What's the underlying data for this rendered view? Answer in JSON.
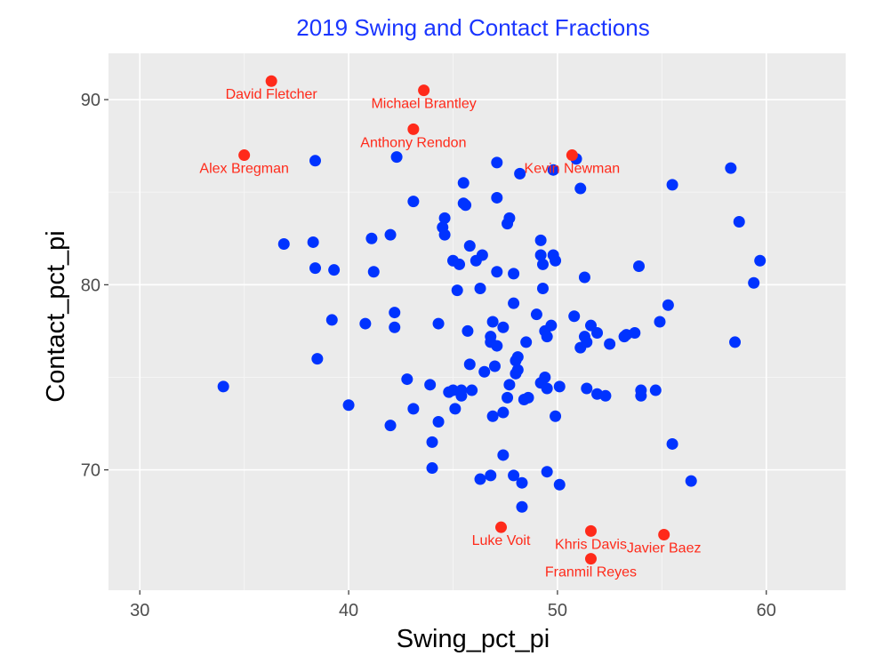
{
  "chart_data": {
    "type": "scatter",
    "title": "2019 Swing and Contact Fractions",
    "xlabel": "Swing_pct_pi",
    "ylabel": "Contact_pct_pi",
    "xlim": [
      28.5,
      63.8
    ],
    "ylim": [
      63.5,
      92.5
    ],
    "x_ticks": [
      30,
      40,
      50,
      60
    ],
    "y_ticks": [
      70,
      80,
      90
    ],
    "x_tick_labels": [
      "30",
      "40",
      "50",
      "60"
    ],
    "y_tick_labels": [
      "70",
      "80",
      "90"
    ],
    "grid": true,
    "legend": "none",
    "colors": {
      "panel": "#ebebeb",
      "grid_major": "#ffffff",
      "grid_minor": "#f5f5f5",
      "points": "#0033ff",
      "highlight": "#ff2a1a",
      "title": "#1a35ff",
      "tick": "#4d4d4d"
    },
    "series": [
      {
        "points": [
          [
            34.0,
            74.5
          ],
          [
            36.9,
            82.2
          ],
          [
            38.3,
            82.3
          ],
          [
            38.4,
            80.9
          ],
          [
            38.4,
            86.7
          ],
          [
            38.5,
            76.0
          ],
          [
            39.2,
            78.1
          ],
          [
            39.3,
            80.8
          ],
          [
            40.0,
            73.5
          ],
          [
            40.8,
            77.9
          ],
          [
            41.1,
            82.5
          ],
          [
            41.2,
            80.7
          ],
          [
            42.0,
            72.4
          ],
          [
            42.0,
            82.7
          ],
          [
            42.2,
            78.5
          ],
          [
            42.2,
            77.7
          ],
          [
            42.3,
            86.9
          ],
          [
            42.8,
            74.9
          ],
          [
            43.1,
            73.3
          ],
          [
            43.1,
            84.5
          ],
          [
            43.9,
            74.6
          ],
          [
            44.0,
            71.5
          ],
          [
            44.0,
            70.1
          ],
          [
            44.3,
            77.9
          ],
          [
            44.3,
            72.6
          ],
          [
            44.5,
            83.1
          ],
          [
            44.6,
            83.6
          ],
          [
            44.6,
            82.7
          ],
          [
            44.8,
            74.2
          ],
          [
            45.0,
            74.3
          ],
          [
            45.0,
            81.3
          ],
          [
            45.1,
            73.3
          ],
          [
            45.2,
            79.7
          ],
          [
            45.3,
            81.1
          ],
          [
            45.4,
            74.0
          ],
          [
            45.4,
            74.3
          ],
          [
            45.5,
            84.4
          ],
          [
            45.5,
            85.5
          ],
          [
            45.6,
            84.3
          ],
          [
            45.7,
            77.5
          ],
          [
            45.8,
            75.7
          ],
          [
            45.8,
            82.1
          ],
          [
            45.9,
            74.3
          ],
          [
            46.1,
            81.3
          ],
          [
            46.3,
            79.8
          ],
          [
            46.3,
            69.5
          ],
          [
            46.4,
            81.6
          ],
          [
            46.5,
            75.3
          ],
          [
            46.8,
            69.7
          ],
          [
            46.8,
            77.2
          ],
          [
            46.8,
            76.9
          ],
          [
            46.9,
            72.9
          ],
          [
            46.9,
            78.0
          ],
          [
            47.0,
            75.6
          ],
          [
            47.1,
            80.7
          ],
          [
            47.1,
            76.7
          ],
          [
            47.1,
            84.7
          ],
          [
            47.1,
            86.6
          ],
          [
            47.4,
            77.7
          ],
          [
            47.4,
            70.8
          ],
          [
            47.4,
            73.1
          ],
          [
            47.6,
            73.9
          ],
          [
            47.6,
            83.3
          ],
          [
            47.7,
            83.6
          ],
          [
            47.7,
            74.6
          ],
          [
            47.9,
            69.7
          ],
          [
            47.9,
            80.6
          ],
          [
            47.9,
            79.0
          ],
          [
            48.0,
            75.9
          ],
          [
            48.0,
            75.2
          ],
          [
            48.1,
            75.4
          ],
          [
            48.1,
            76.1
          ],
          [
            48.2,
            86.0
          ],
          [
            48.3,
            69.3
          ],
          [
            48.3,
            68.0
          ],
          [
            48.4,
            73.8
          ],
          [
            48.5,
            76.9
          ],
          [
            48.6,
            73.9
          ],
          [
            49.0,
            78.4
          ],
          [
            49.2,
            82.4
          ],
          [
            49.2,
            81.6
          ],
          [
            49.2,
            74.7
          ],
          [
            49.3,
            79.8
          ],
          [
            49.3,
            81.1
          ],
          [
            49.4,
            77.5
          ],
          [
            49.4,
            75.0
          ],
          [
            49.5,
            77.2
          ],
          [
            49.5,
            74.4
          ],
          [
            49.5,
            69.9
          ],
          [
            49.7,
            77.8
          ],
          [
            49.8,
            81.6
          ],
          [
            49.8,
            86.2
          ],
          [
            49.9,
            81.3
          ],
          [
            49.9,
            72.9
          ],
          [
            50.1,
            74.5
          ],
          [
            50.1,
            69.2
          ],
          [
            50.8,
            78.3
          ],
          [
            50.9,
            86.8
          ],
          [
            51.1,
            76.6
          ],
          [
            51.1,
            85.2
          ],
          [
            51.3,
            80.4
          ],
          [
            51.3,
            77.2
          ],
          [
            51.4,
            76.9
          ],
          [
            51.4,
            74.4
          ],
          [
            51.6,
            77.8
          ],
          [
            51.9,
            74.1
          ],
          [
            51.9,
            77.4
          ],
          [
            52.3,
            74.0
          ],
          [
            52.5,
            76.8
          ],
          [
            53.2,
            77.2
          ],
          [
            53.3,
            77.3
          ],
          [
            53.7,
            77.4
          ],
          [
            53.9,
            81.0
          ],
          [
            54.0,
            74.0
          ],
          [
            54.0,
            74.3
          ],
          [
            54.7,
            74.3
          ],
          [
            54.9,
            78.0
          ],
          [
            55.3,
            78.9
          ],
          [
            55.5,
            71.4
          ],
          [
            55.5,
            85.4
          ],
          [
            56.4,
            69.4
          ],
          [
            58.3,
            86.3
          ],
          [
            58.5,
            76.9
          ],
          [
            58.7,
            83.4
          ],
          [
            59.4,
            80.1
          ],
          [
            59.7,
            81.3
          ]
        ]
      }
    ],
    "highlighted": [
      {
        "name": "David Fletcher",
        "x": 36.3,
        "y": 91.0
      },
      {
        "name": "Michael Brantley",
        "x": 43.6,
        "y": 90.5
      },
      {
        "name": "Anthony Rendon",
        "x": 43.1,
        "y": 88.4
      },
      {
        "name": "Alex Bregman",
        "x": 35.0,
        "y": 87.0
      },
      {
        "name": "Kevin Newman",
        "x": 50.7,
        "y": 87.0
      },
      {
        "name": "Luke Voit",
        "x": 47.3,
        "y": 66.9
      },
      {
        "name": "Khris Davis",
        "x": 51.6,
        "y": 66.7
      },
      {
        "name": "Javier Baez",
        "x": 55.1,
        "y": 66.5
      },
      {
        "name": "Franmil Reyes",
        "x": 51.6,
        "y": 65.2
      }
    ]
  }
}
